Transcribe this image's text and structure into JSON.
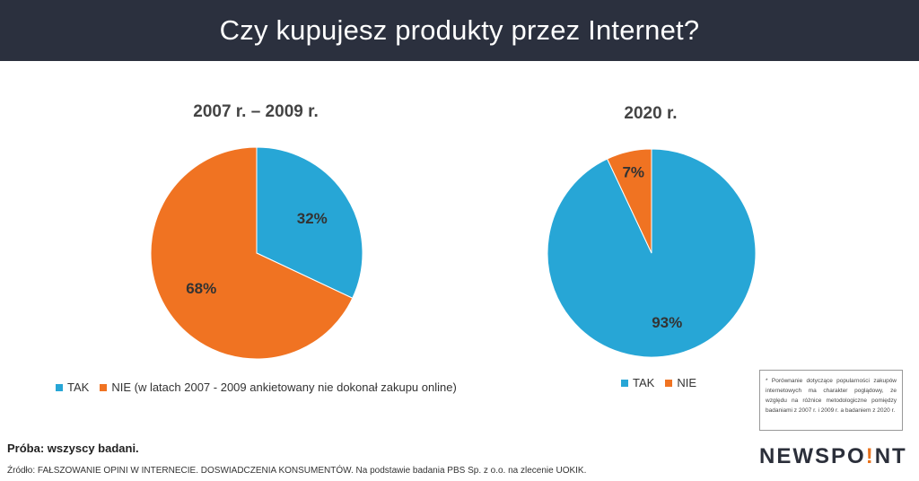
{
  "header": {
    "title": "Czy kupujesz produkty przez Internet?"
  },
  "colors": {
    "tak": "#27a6d6",
    "nie": "#f07322",
    "header_bg": "#2b303e"
  },
  "chart_data": [
    {
      "type": "pie",
      "title": "2007 r. – 2009 r.",
      "categories": [
        "TAK",
        "NIE (w latach 2007 - 2009 ankietowany nie dokonał zakupu online)"
      ],
      "values": [
        32,
        68
      ],
      "labels": [
        "32%",
        "68%"
      ],
      "colors": [
        "#27a6d6",
        "#f07322"
      ],
      "legend": "bottom"
    },
    {
      "type": "pie",
      "title": "2020 r.",
      "categories": [
        "TAK",
        "NIE"
      ],
      "values": [
        93,
        7
      ],
      "labels": [
        "93%",
        "7%"
      ],
      "colors": [
        "#27a6d6",
        "#f07322"
      ],
      "legend": "bottom"
    }
  ],
  "note": "* Porównanie dotyczące popularności zakupów internetowych ma charakter poglądowy, ze względu na różnice metodologiczne pomiędzy badaniami z 2007 r. i 2009 r. a badaniem z 2020 r.",
  "footer": {
    "sample": "Próba: wszyscy badani.",
    "source": "Źródło: FAŁSZOWANIE OPINI W INTERNECIE. DOSWIADCZENIA KONSUMENTÓW. Na podstawie badania PBS Sp. z o.o. na zlecenie UOKIK."
  },
  "logo": {
    "part1": "NEWSPO",
    "part2": "!",
    "part3": "NT"
  }
}
